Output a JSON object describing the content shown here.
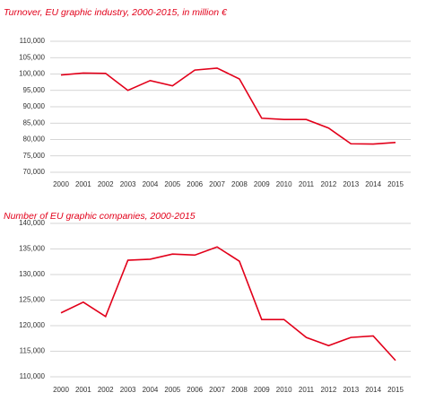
{
  "chart_data": [
    {
      "type": "line",
      "title": "Turnover, EU graphic industry, 2000-2015, in million €",
      "categories": [
        "2000",
        "2001",
        "2002",
        "2003",
        "2004",
        "2005",
        "2006",
        "2007",
        "2008",
        "2009",
        "2010",
        "2011",
        "2012",
        "2013",
        "2014",
        "2015"
      ],
      "values": [
        99700,
        100300,
        100200,
        95000,
        98000,
        96400,
        101200,
        101800,
        98500,
        86500,
        86100,
        86100,
        83500,
        78700,
        78600,
        79100
      ],
      "color": "#e2001a",
      "ylim": [
        70000,
        110000
      ],
      "yticks": [
        {
          "value": 70000,
          "label": "70,000"
        },
        {
          "value": 75000,
          "label": "75,000"
        },
        {
          "value": 80000,
          "label": "80,000"
        },
        {
          "value": 85000,
          "label": "85,000"
        },
        {
          "value": 90000,
          "label": "90,000"
        },
        {
          "value": 95000,
          "label": "95,000"
        },
        {
          "value": 100000,
          "label": "100,000"
        },
        {
          "value": 105000,
          "label": "105,000"
        },
        {
          "value": 110000,
          "label": "110,000"
        }
      ],
      "grid": true
    },
    {
      "type": "line",
      "title": "Number of EU graphic companies, 2000-2015",
      "categories": [
        "2000",
        "2001",
        "2002",
        "2003",
        "2004",
        "2005",
        "2006",
        "2007",
        "2008",
        "2009",
        "2010",
        "2011",
        "2012",
        "2013",
        "2014",
        "2015"
      ],
      "values": [
        122500,
        124600,
        121800,
        132800,
        133000,
        134000,
        133800,
        135400,
        132600,
        121200,
        121200,
        117700,
        116100,
        117700,
        118000,
        113200
      ],
      "color": "#e2001a",
      "ylim": [
        110000,
        140000
      ],
      "yticks": [
        {
          "value": 110000,
          "label": "110,000"
        },
        {
          "value": 115000,
          "label": "115,000"
        },
        {
          "value": 120000,
          "label": "120,000"
        },
        {
          "value": 125000,
          "label": "125,000"
        },
        {
          "value": 130000,
          "label": "130,000"
        },
        {
          "value": 135000,
          "label": "135,000"
        },
        {
          "value": 140000,
          "label": "140,000"
        }
      ],
      "grid": true
    }
  ]
}
